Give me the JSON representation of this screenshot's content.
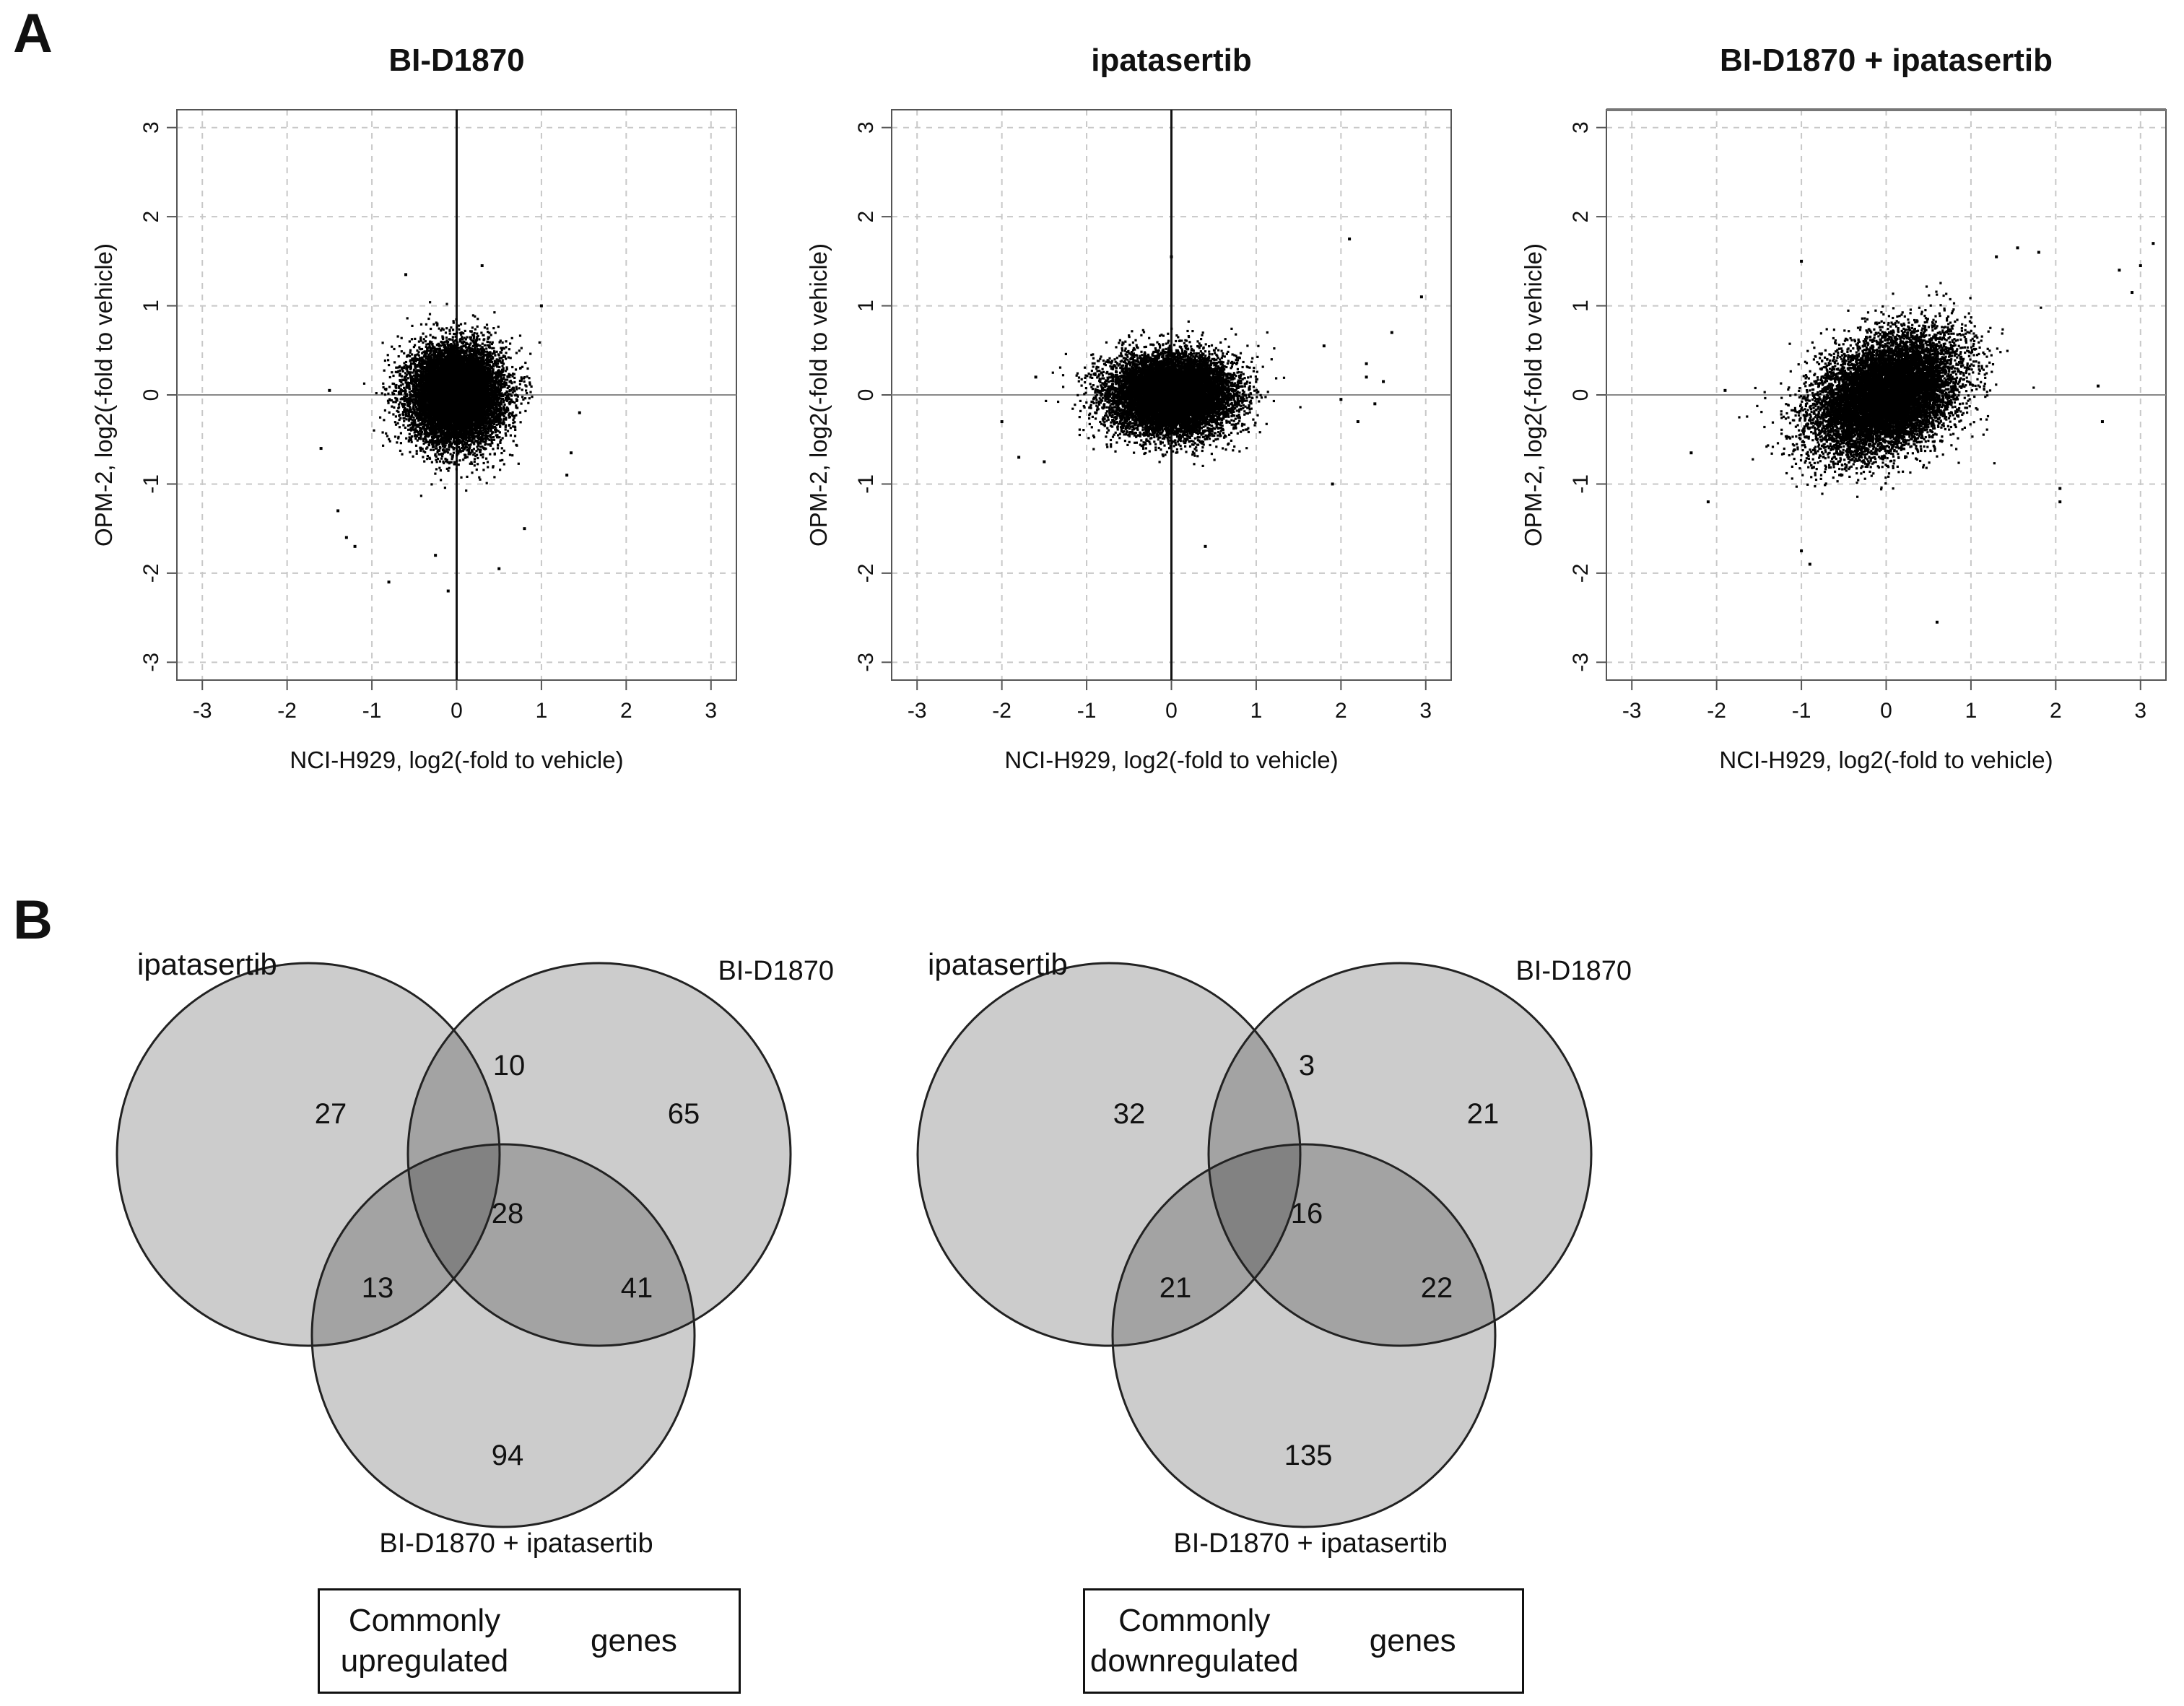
{
  "panel_a_label": "A",
  "panel_b_label": "B",
  "chart_data": [
    {
      "type": "scatter",
      "title": "BI-D1870",
      "xlabel": "NCI-H929, log2(-fold to vehicle)",
      "ylabel": "OPM-2, log2(-fold to vehicle)",
      "xlim": [
        -3.3,
        3.3
      ],
      "ylim": [
        -3.2,
        3.2
      ],
      "xticks": [
        "-3",
        "-2",
        "-1",
        "0",
        "1",
        "2",
        "3"
      ],
      "yticks": [
        "-3",
        "-2",
        "-1",
        "0",
        "1",
        "2",
        "3"
      ],
      "grid": true,
      "reference_lines": "x=0, y=0",
      "cloud": {
        "n_points": 11000,
        "center_x": 0.0,
        "center_y": 0.0,
        "sd_x": 0.27,
        "sd_y": 0.27,
        "correlation": 0.0
      },
      "outliers": [
        [
          -1.5,
          0.05
        ],
        [
          -1.6,
          -0.6
        ],
        [
          -1.4,
          -1.3
        ],
        [
          -1.3,
          -1.6
        ],
        [
          -1.2,
          -1.7
        ],
        [
          -0.8,
          -2.1
        ],
        [
          -0.1,
          -2.2
        ],
        [
          0.5,
          -1.95
        ],
        [
          1.35,
          -0.65
        ],
        [
          1.45,
          -0.2
        ],
        [
          1.3,
          -0.9
        ],
        [
          0.3,
          1.45
        ],
        [
          -0.6,
          1.35
        ],
        [
          1.0,
          1.0
        ],
        [
          -0.25,
          -1.8
        ],
        [
          0.8,
          -1.5
        ]
      ]
    },
    {
      "type": "scatter",
      "title": "ipatasertib",
      "xlabel": "NCI-H929, log2(-fold to vehicle)",
      "ylabel": "OPM-2, log2(-fold to vehicle)",
      "xlim": [
        -3.3,
        3.3
      ],
      "ylim": [
        -3.2,
        3.2
      ],
      "xticks": [
        "-3",
        "-2",
        "-1",
        "0",
        "1",
        "2",
        "3"
      ],
      "yticks": [
        "-3",
        "-2",
        "-1",
        "0",
        "1",
        "2",
        "3"
      ],
      "grid": true,
      "reference_lines": "x=0, y=0",
      "cloud": {
        "n_points": 11000,
        "center_x": 0.0,
        "center_y": 0.0,
        "sd_x": 0.36,
        "sd_y": 0.22,
        "correlation": 0.0
      },
      "outliers": [
        [
          2.1,
          1.75
        ],
        [
          2.95,
          1.1
        ],
        [
          2.6,
          0.7
        ],
        [
          2.3,
          0.2
        ],
        [
          2.5,
          0.15
        ],
        [
          2.2,
          -0.3
        ],
        [
          2.0,
          -0.05
        ],
        [
          1.9,
          -1.0
        ],
        [
          2.4,
          -0.1
        ],
        [
          2.3,
          0.35
        ],
        [
          0.4,
          -1.7
        ],
        [
          -2.0,
          -0.3
        ],
        [
          -1.8,
          -0.7
        ],
        [
          -1.5,
          -0.75
        ],
        [
          -1.6,
          0.2
        ],
        [
          1.8,
          0.55
        ],
        [
          0.0,
          1.55
        ]
      ]
    },
    {
      "type": "scatter",
      "title": "BI-D1870 + ipatasertib",
      "xlabel": "NCI-H929, log2(-fold to vehicle)",
      "ylabel": "OPM-2, log2(-fold to vehicle)",
      "xlim": [
        -3.3,
        3.3
      ],
      "ylim": [
        -3.2,
        3.2
      ],
      "xticks": [
        "-3",
        "-2",
        "-1",
        "0",
        "1",
        "2",
        "3"
      ],
      "yticks": [
        "-3",
        "-2",
        "-1",
        "0",
        "1",
        "2",
        "3"
      ],
      "grid": true,
      "reference_lines": "y=0",
      "cloud": {
        "n_points": 11000,
        "center_x": 0.0,
        "center_y": 0.0,
        "sd_x": 0.42,
        "sd_y": 0.33,
        "correlation": 0.35
      },
      "outliers": [
        [
          3.15,
          1.7
        ],
        [
          2.75,
          1.4
        ],
        [
          2.9,
          1.15
        ],
        [
          3.0,
          1.45
        ],
        [
          2.5,
          0.1
        ],
        [
          2.55,
          -0.3
        ],
        [
          2.05,
          -1.05
        ],
        [
          1.55,
          1.65
        ],
        [
          1.8,
          1.6
        ],
        [
          0.6,
          -2.55
        ],
        [
          -2.3,
          -0.65
        ],
        [
          -1.9,
          0.05
        ],
        [
          -2.1,
          -1.2
        ],
        [
          -1.0,
          -1.75
        ],
        [
          -0.9,
          -1.9
        ],
        [
          2.05,
          -1.2
        ],
        [
          -1.0,
          1.5
        ],
        [
          1.3,
          1.55
        ]
      ]
    },
    {
      "type": "venn3",
      "title": "",
      "set_labels": [
        "ipatasertib",
        "BI-D1870",
        "BI-D1870 + ipatasertib"
      ],
      "regions": {
        "A_only": 27,
        "B_only": 65,
        "C_only": 94,
        "AB_only": 10,
        "AC_only": 13,
        "BC_only": 41,
        "ABC": 28
      },
      "caption": [
        "Commonly upregulated",
        "genes"
      ]
    },
    {
      "type": "venn3",
      "title": "",
      "set_labels": [
        "ipatasertib",
        "BI-D1870",
        "BI-D1870 + ipatasertib"
      ],
      "regions": {
        "A_only": 32,
        "B_only": 21,
        "C_only": 135,
        "AB_only": 3,
        "AC_only": 21,
        "BC_only": 22,
        "ABC": 16
      },
      "caption": [
        "Commonly downregulated",
        "genes"
      ]
    }
  ]
}
